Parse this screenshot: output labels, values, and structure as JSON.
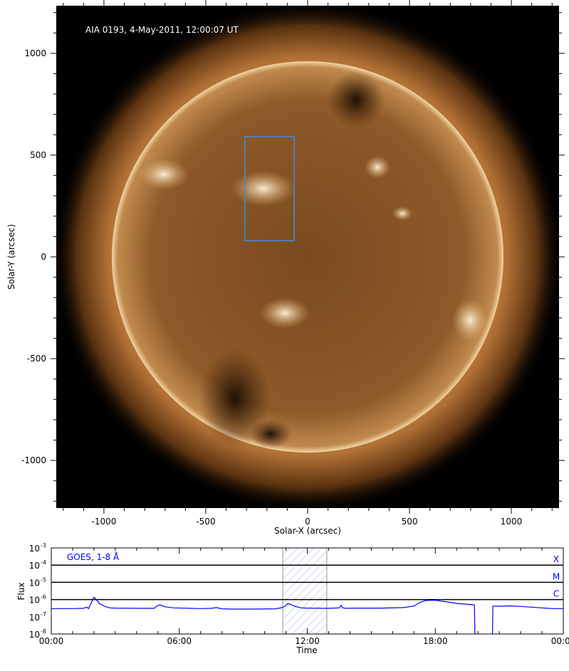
{
  "chart_data": [
    {
      "type": "image",
      "title": "AIA 0193, 4-May-2011, 12:00:07 UT",
      "xlabel": "Solar-X (arcsec)",
      "ylabel": "Solar-Y (arcsec)",
      "xlim": [
        -1234,
        1234
      ],
      "ylim": [
        -1234,
        1234
      ],
      "xticks": [
        -1000,
        -500,
        0,
        500,
        1000
      ],
      "yticks": [
        -1000,
        -500,
        0,
        500,
        1000
      ],
      "colormap": "sdoaia193",
      "solar_radius_arcsec": 960,
      "region_box": {
        "x": [
          -308,
          -66
        ],
        "y": [
          80,
          591
        ],
        "color": "#3a8fe0"
      }
    },
    {
      "type": "line",
      "xlabel": "Time",
      "ylabel": "Flux",
      "yscale": "log",
      "ylim": [
        1e-08,
        0.001
      ],
      "xlim": [
        "00:00",
        "24:00"
      ],
      "xticks": [
        "00:00",
        "06:00",
        "12:00",
        "18:00",
        "00:00"
      ],
      "yticks": [
        "10^-3",
        "10^-4",
        "10^-5",
        "10^-6",
        "10^-7",
        "10^-8"
      ],
      "legend": "GOES, 1-8 Å",
      "series_color": "#0000ff",
      "class_levels": [
        {
          "label": "X",
          "value": 0.0001
        },
        {
          "label": "M",
          "value": 1e-05
        },
        {
          "label": "C",
          "value": 1e-06
        }
      ],
      "highlight_interval": [
        "10:51",
        "12:55"
      ],
      "series": [
        {
          "x": [
            "00:00",
            "00:30",
            "01:00",
            "01:30",
            "01:40",
            "01:45",
            "01:50",
            "02:00",
            "02:05",
            "02:15",
            "02:30",
            "02:45",
            "03:00",
            "04:00",
            "04:50",
            "04:55",
            "05:05",
            "05:20",
            "05:45",
            "06:30",
            "07:00",
            "07:30",
            "07:45",
            "08:00",
            "08:30",
            "09:30",
            "10:30",
            "10:50",
            "11:00",
            "11:05",
            "11:15",
            "11:30",
            "11:45",
            "12:00",
            "13:00",
            "13:30",
            "13:35",
            "13:40",
            "13:50",
            "14:30",
            "15:30",
            "16:30",
            "17:00",
            "17:15",
            "17:30",
            "17:45",
            "18:00",
            "18:30",
            "19:00",
            "19:45",
            "19:50",
            "19:52",
            "20:40",
            "20:42",
            "21:00",
            "21:30",
            "22:00",
            "22:30",
            "23:00",
            "23:30",
            "24:00"
          ],
          "y": [
            3e-07,
            3e-07,
            3e-07,
            3.1e-07,
            3.6e-07,
            3e-07,
            5e-07,
            1.35e-06,
            1.1e-06,
            6e-07,
            4e-07,
            3.3e-07,
            3.2e-07,
            3.1e-07,
            3.1e-07,
            4e-07,
            5e-07,
            3.8e-07,
            3.3e-07,
            3.1e-07,
            3e-07,
            3.1e-07,
            3.4e-07,
            2.9e-07,
            2.8e-07,
            2.8e-07,
            2.9e-07,
            3.4e-07,
            4.5e-07,
            6e-07,
            5e-07,
            3.8e-07,
            3.3e-07,
            3.2e-07,
            3.1e-07,
            3.3e-07,
            4.6e-07,
            3.3e-07,
            3.1e-07,
            3.2e-07,
            3.2e-07,
            3.4e-07,
            4.2e-07,
            6.5e-07,
            8.5e-07,
            9.2e-07,
            9e-07,
            7.5e-07,
            6e-07,
            5e-07,
            4.8e-07,
            1e-09,
            1e-09,
            4.2e-07,
            4.1e-07,
            4.3e-07,
            4e-07,
            3.6e-07,
            3.3e-07,
            3e-07,
            3e-07
          ]
        }
      ]
    }
  ]
}
